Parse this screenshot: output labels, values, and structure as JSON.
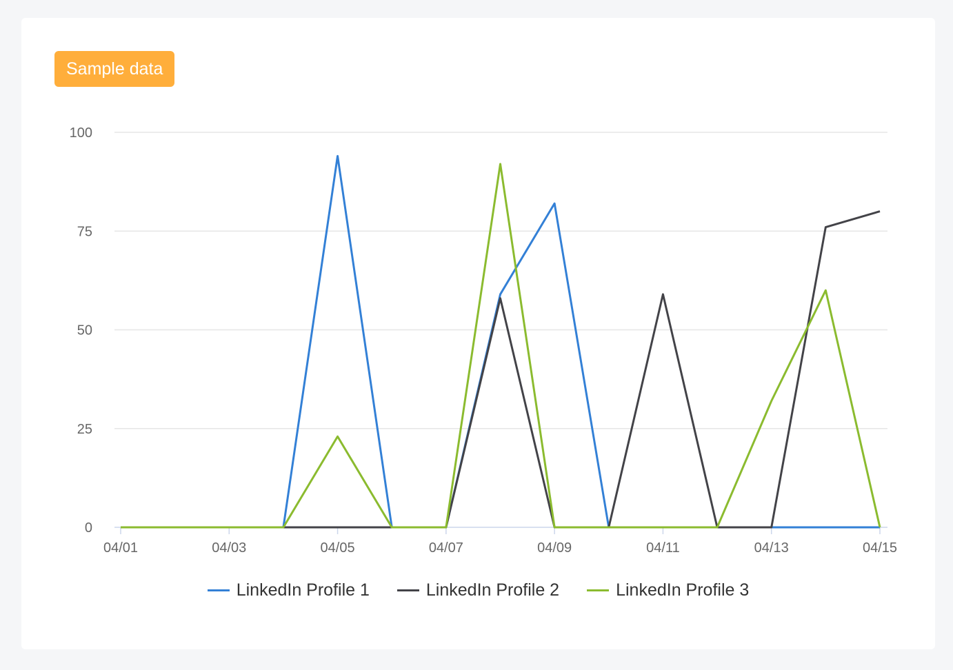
{
  "badge": "Sample data",
  "chart_data": {
    "type": "line",
    "x": [
      "04/01",
      "04/02",
      "04/03",
      "04/04",
      "04/05",
      "04/06",
      "04/07",
      "04/08",
      "04/09",
      "04/10",
      "04/11",
      "04/12",
      "04/13",
      "04/14",
      "04/15"
    ],
    "xtick_labels": [
      "04/01",
      "04/03",
      "04/05",
      "04/07",
      "04/09",
      "04/11",
      "04/13",
      "04/15"
    ],
    "yticks": [
      0,
      25,
      50,
      75,
      100
    ],
    "ylim": [
      0,
      100
    ],
    "grid": true,
    "legend_position": "bottom",
    "series": [
      {
        "name": "LinkedIn Profile 1",
        "color": "#3380d6",
        "values": [
          0,
          0,
          0,
          0,
          94,
          0,
          0,
          59,
          82,
          0,
          0,
          0,
          0,
          0,
          0
        ]
      },
      {
        "name": "LinkedIn Profile 2",
        "color": "#434348",
        "values": [
          0,
          0,
          0,
          0,
          0,
          0,
          0,
          58,
          0,
          0,
          59,
          0,
          0,
          76,
          80
        ]
      },
      {
        "name": "LinkedIn Profile 3",
        "color": "#8bbb2f",
        "values": [
          0,
          0,
          0,
          0,
          23,
          0,
          0,
          92,
          0,
          0,
          0,
          0,
          32,
          60,
          0
        ]
      }
    ]
  }
}
